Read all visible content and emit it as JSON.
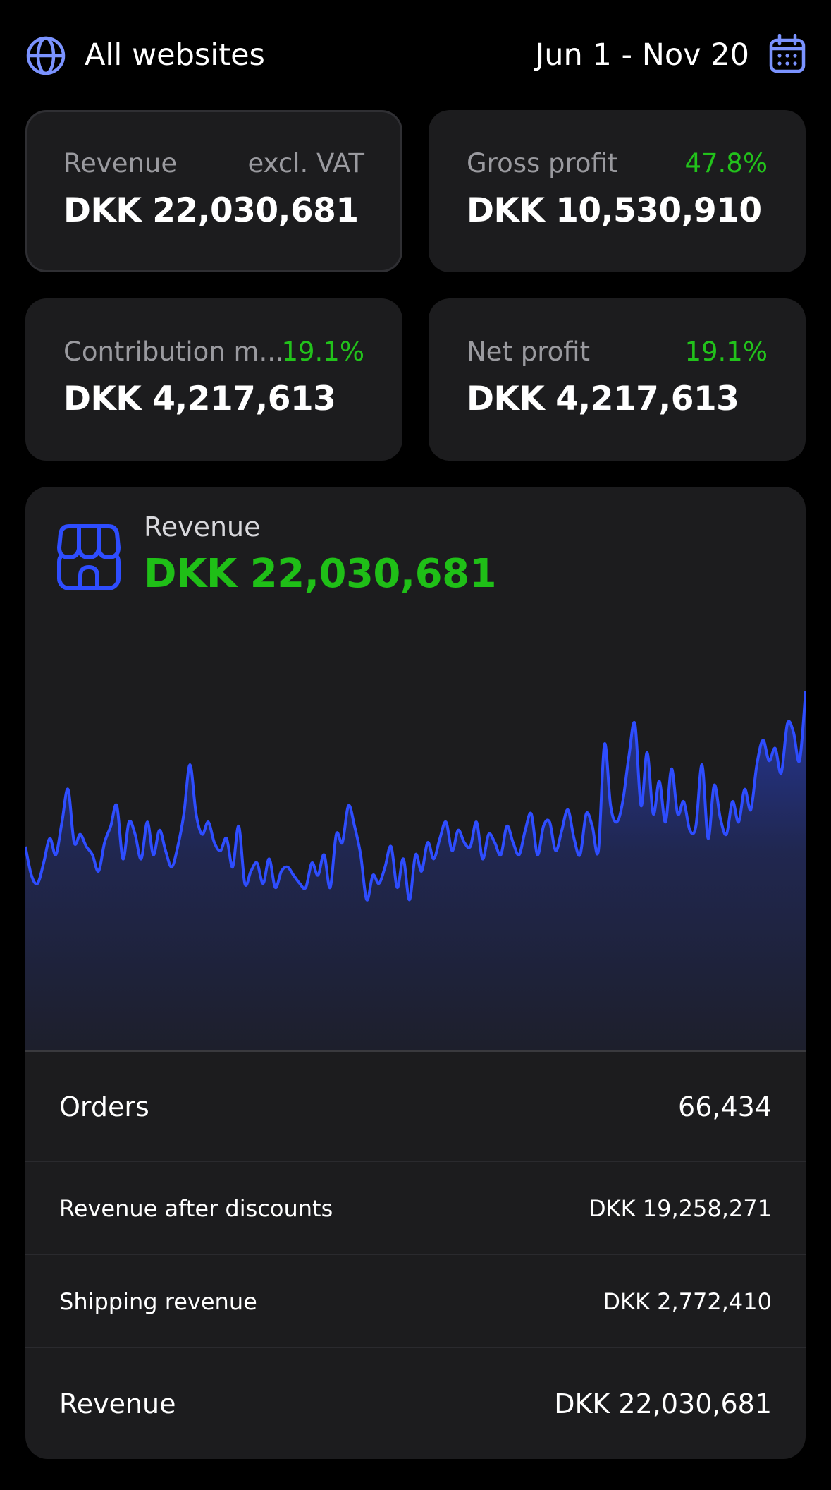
{
  "header": {
    "site_selector_label": "All websites",
    "date_range": "Jun 1 - Nov 20",
    "globe_icon": "globe-icon",
    "calendar_icon": "calendar-icon"
  },
  "colors": {
    "accent_blue": "#2e4dff",
    "positive_green": "#22c21b",
    "card_bg": "#1c1c1e",
    "page_bg": "#000000"
  },
  "kpis": [
    {
      "label": "Revenue",
      "aux": "excl. VAT",
      "value": "DKK 22,030,681"
    },
    {
      "label": "Gross profit",
      "aux": "47.8%",
      "value": "DKK 10,530,910"
    },
    {
      "label": "Contribution m...",
      "aux": "19.1%",
      "value": "DKK 4,217,613"
    },
    {
      "label": "Net profit",
      "aux": "19.1%",
      "value": "DKK 4,217,613"
    }
  ],
  "panel": {
    "icon": "store-icon",
    "label": "Revenue",
    "value": "DKK 22,030,681",
    "rows": [
      {
        "label": "Orders",
        "value": "66,434"
      },
      {
        "label": "Revenue after discounts",
        "value": "DKK 19,258,271"
      },
      {
        "label": "Shipping revenue",
        "value": "DKK 2,772,410"
      },
      {
        "label": "Revenue",
        "value": "DKK 22,030,681"
      }
    ]
  },
  "chart_data": {
    "type": "area",
    "title": "",
    "xlabel": "",
    "ylabel": "",
    "grid": false,
    "legend": "none",
    "ylim": [
      0,
      1
    ],
    "series": [
      {
        "values": [
          0.5,
          0.43,
          0.41,
          0.46,
          0.52,
          0.48,
          0.56,
          0.64,
          0.51,
          0.53,
          0.5,
          0.48,
          0.44,
          0.51,
          0.55,
          0.6,
          0.47,
          0.56,
          0.53,
          0.47,
          0.56,
          0.48,
          0.54,
          0.49,
          0.45,
          0.5,
          0.58,
          0.7,
          0.58,
          0.53,
          0.56,
          0.51,
          0.49,
          0.52,
          0.45,
          0.55,
          0.41,
          0.44,
          0.46,
          0.41,
          0.47,
          0.4,
          0.44,
          0.45,
          0.43,
          0.41,
          0.4,
          0.46,
          0.43,
          0.48,
          0.4,
          0.53,
          0.51,
          0.6,
          0.55,
          0.48,
          0.37,
          0.43,
          0.41,
          0.45,
          0.5,
          0.4,
          0.47,
          0.37,
          0.48,
          0.44,
          0.51,
          0.47,
          0.52,
          0.56,
          0.49,
          0.54,
          0.51,
          0.5,
          0.56,
          0.47,
          0.53,
          0.51,
          0.48,
          0.55,
          0.51,
          0.48,
          0.54,
          0.58,
          0.48,
          0.55,
          0.56,
          0.49,
          0.54,
          0.59,
          0.52,
          0.48,
          0.58,
          0.55,
          0.49,
          0.75,
          0.6,
          0.56,
          0.61,
          0.72,
          0.8,
          0.6,
          0.73,
          0.58,
          0.66,
          0.56,
          0.69,
          0.58,
          0.61,
          0.54,
          0.55,
          0.7,
          0.52,
          0.65,
          0.57,
          0.53,
          0.61,
          0.56,
          0.64,
          0.59,
          0.7,
          0.76,
          0.71,
          0.74,
          0.68,
          0.8,
          0.78,
          0.71,
          0.88
        ]
      }
    ]
  }
}
